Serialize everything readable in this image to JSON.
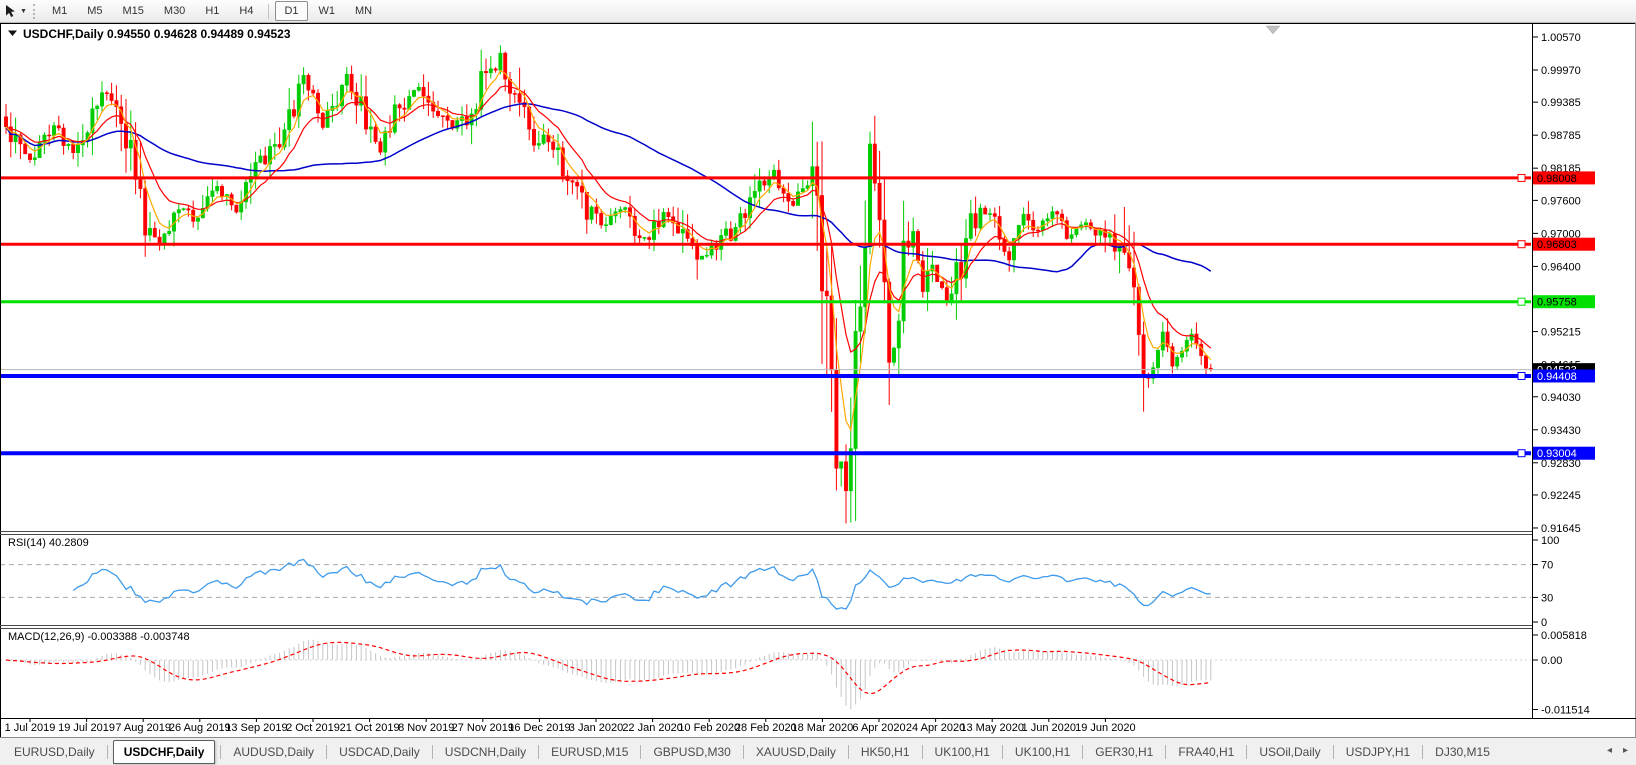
{
  "toolbar": {
    "timeframes": [
      "M1",
      "M5",
      "M15",
      "M30",
      "H1",
      "H4",
      "D1",
      "W1",
      "MN"
    ],
    "active": "D1"
  },
  "chart_title": {
    "symbol": "USDCHF,Daily",
    "ohlc": "0.94550 0.94628 0.94489 0.94523"
  },
  "chart_data": {
    "type": "candlestick",
    "symbol": "USDCHF",
    "timeframe": "Daily",
    "visible_ohlc": {
      "open": "0.94550",
      "high": "0.94628",
      "low": "0.94489",
      "close": "0.94523"
    },
    "price_axis_ticks": [
      "1.00570",
      "0.99970",
      "0.99385",
      "0.98785",
      "0.98185",
      "0.97600",
      "0.97000",
      "0.96400",
      "0.95215",
      "0.94615",
      "0.94030",
      "0.93430",
      "0.92830",
      "0.92245",
      "0.91645"
    ],
    "price_axis_range": [
      0.9159,
      1.00824
    ],
    "x_axis_labels": [
      "1 Jul 2019",
      "19 Jul 2019",
      "7 Aug 2019",
      "26 Aug 2019",
      "13 Sep 2019",
      "2 Oct 2019",
      "21 Oct 2019",
      "8 Nov 2019",
      "27 Nov 2019",
      "16 Dec 2019",
      "3 Jan 2020",
      "22 Jan 2020",
      "10 Feb 2020",
      "28 Feb 2020",
      "18 Mar 2020",
      "6 Apr 2020",
      "24 Apr 2020",
      "13 May 2020",
      "1 Jun 2020",
      "19 Jun 2020"
    ],
    "horizontal_lines": [
      {
        "price": 0.98008,
        "label": "0.98008",
        "color": "#FF0000",
        "label_text": "#000000",
        "width": 3
      },
      {
        "price": 0.96803,
        "label": "0.96803",
        "color": "#FF0000",
        "label_text": "#000000",
        "width": 3
      },
      {
        "price": 0.95758,
        "label": "0.95758",
        "color": "#00E000",
        "label_text": "#000000",
        "width": 3
      },
      {
        "price": 0.94408,
        "label": "0.94408",
        "color": "#0000FF",
        "label_text": "#FFFFFF",
        "width": 4
      },
      {
        "price": 0.93004,
        "label": "0.93004",
        "color": "#0000FF",
        "label_text": "#FFFFFF",
        "width": 4
      }
    ],
    "current_price_line": {
      "price": 0.94523,
      "label": "0.94523",
      "line_color": "#B8B8B8",
      "box_color": "#000000",
      "text_color": "#FFFFFF"
    },
    "colors": {
      "up_candle": "#00CC00",
      "down_candle": "#FF0000",
      "ma_fast": "#FFA800",
      "ma_mid": "#FF0000",
      "ma_slow": "#0000CD",
      "rsi_line": "#3E9BEC",
      "rsi_levels": "#ABABAB",
      "macd_histogram": "#C4C4C4",
      "macd_signal": "#FF0000"
    },
    "candles": {
      "count": 252,
      "anchors": [
        [
          0,
          0.99
        ],
        [
          3,
          0.9855
        ],
        [
          5,
          0.9838
        ],
        [
          8,
          0.9872
        ],
        [
          10,
          0.9893
        ],
        [
          13,
          0.986
        ],
        [
          15,
          0.9848
        ],
        [
          18,
          0.9912
        ],
        [
          20,
          0.9958
        ],
        [
          22,
          0.994
        ],
        [
          24,
          0.9898
        ],
        [
          26,
          0.987
        ],
        [
          29,
          0.971
        ],
        [
          32,
          0.969
        ],
        [
          34,
          0.9716
        ],
        [
          37,
          0.9745
        ],
        [
          40,
          0.9726
        ],
        [
          44,
          0.9786
        ],
        [
          48,
          0.9738
        ],
        [
          53,
          0.9838
        ],
        [
          58,
          0.9876
        ],
        [
          60,
          0.992
        ],
        [
          62,
          0.9986
        ],
        [
          64,
          0.994
        ],
        [
          66,
          0.9898
        ],
        [
          69,
          0.995
        ],
        [
          71,
          0.9984
        ],
        [
          74,
          0.9926
        ],
        [
          78,
          0.9856
        ],
        [
          82,
          0.9936
        ],
        [
          87,
          0.9962
        ],
        [
          90,
          0.9906
        ],
        [
          95,
          0.9894
        ],
        [
          99,
          0.9972
        ],
        [
          103,
          1.0014
        ],
        [
          106,
          0.9954
        ],
        [
          110,
          0.9876
        ],
        [
          114,
          0.9866
        ],
        [
          118,
          0.9786
        ],
        [
          121,
          0.9746
        ],
        [
          124,
          0.9716
        ],
        [
          128,
          0.9746
        ],
        [
          133,
          0.9686
        ],
        [
          137,
          0.9736
        ],
        [
          141,
          0.9706
        ],
        [
          144,
          0.9648
        ],
        [
          148,
          0.9686
        ],
        [
          152,
          0.9706
        ],
        [
          156,
          0.9766
        ],
        [
          160,
          0.9806
        ],
        [
          164,
          0.9756
        ],
        [
          167,
          0.9786
        ],
        [
          169,
          0.9746
        ],
        [
          170,
          0.964
        ],
        [
          171,
          0.952
        ],
        [
          172,
          0.942
        ],
        [
          173,
          0.933
        ],
        [
          175,
          0.9256
        ],
        [
          176,
          0.931
        ],
        [
          177,
          0.952
        ],
        [
          178,
          0.96
        ],
        [
          179,
          0.968
        ],
        [
          180,
          0.987
        ],
        [
          181,
          0.979
        ],
        [
          182,
          0.97
        ],
        [
          183,
          0.959
        ],
        [
          184,
          0.946
        ],
        [
          185,
          0.95
        ],
        [
          186,
          0.956
        ],
        [
          187,
          0.966
        ],
        [
          189,
          0.9722
        ],
        [
          191,
          0.959
        ],
        [
          193,
          0.9636
        ],
        [
          196,
          0.957
        ],
        [
          200,
          0.9686
        ],
        [
          203,
          0.9752
        ],
        [
          206,
          0.9706
        ],
        [
          209,
          0.9656
        ],
        [
          212,
          0.9736
        ],
        [
          215,
          0.9706
        ],
        [
          218,
          0.9746
        ],
        [
          221,
          0.9696
        ],
        [
          225,
          0.9716
        ],
        [
          228,
          0.9706
        ],
        [
          231,
          0.9666
        ],
        [
          234,
          0.9616
        ],
        [
          236,
          0.95
        ],
        [
          237,
          0.942
        ],
        [
          238,
          0.944
        ],
        [
          239,
          0.9448
        ],
        [
          241,
          0.9524
        ],
        [
          243,
          0.9468
        ],
        [
          245,
          0.9488
        ],
        [
          247,
          0.9514
        ],
        [
          249,
          0.9478
        ],
        [
          251,
          0.9452
        ]
      ],
      "specials": [
        {
          "i": 20,
          "high": 0.9976
        },
        {
          "i": 62,
          "high": 1.0002
        },
        {
          "i": 71,
          "high": 0.9998
        },
        {
          "i": 103,
          "high": 1.0042
        },
        {
          "i": 144,
          "low": 0.9616
        },
        {
          "i": 174,
          "low": 0.924
        },
        {
          "i": 175,
          "low": 0.9185
        },
        {
          "i": 180,
          "high": 0.9885
        },
        {
          "i": 184,
          "low": 0.9388
        },
        {
          "i": 237,
          "low": 0.9376
        }
      ],
      "last_ohlc": [
        0.9455,
        0.94628,
        0.94489,
        0.94523
      ]
    }
  },
  "rsi_panel": {
    "label": "RSI(14) 40.2809",
    "axis_ticks": [
      100,
      70,
      30,
      0
    ],
    "dashed_levels": [
      70,
      30
    ]
  },
  "macd_panel": {
    "label": "MACD(12,26,9) -0.003388 -0.003748",
    "axis_ticks": [
      "0.005818",
      "0.00",
      "-0.011514"
    ],
    "axis_values": [
      0.005818,
      0,
      -0.011514
    ]
  },
  "tab_bar": {
    "tabs": [
      "EURUSD,Daily",
      "USDCHF,Daily",
      "AUDUSD,Daily",
      "USDCAD,Daily",
      "USDCNH,Daily",
      "EURUSD,M15",
      "GBPUSD,M30",
      "XAUUSD,Daily",
      "HK50,H1",
      "UK100,H1",
      "UK100,H1",
      "GER30,H1",
      "FRA40,H1",
      "USOil,Daily",
      "USDJPY,H1",
      "DJ30,M15"
    ],
    "active_index": 1
  }
}
